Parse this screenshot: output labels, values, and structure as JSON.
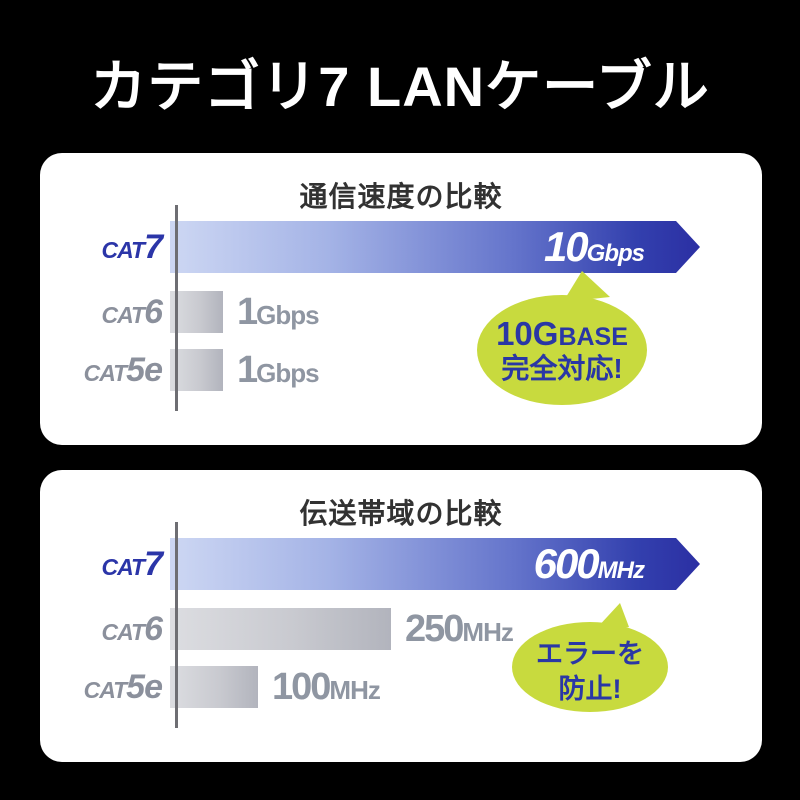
{
  "page": {
    "background_color": "#000000",
    "title": "カテゴリ7 LANケーブル"
  },
  "colors": {
    "card_background": "#ffffff",
    "arrow_blue_dark": "#2b2fa3",
    "arrow_blue_light": "#cdd7f3",
    "gray_bar_light": "#dcdde1",
    "gray_bar_dark": "#b2b4bd",
    "gray_text": "#8f96a2",
    "blue_label_text": "#2b35a8",
    "bubble_green": "#c8da3e",
    "bubble_text_blue": "#2a37a5",
    "chart_title_text": "#323232",
    "axis_gray": "#6e6e73"
  },
  "chart_data": [
    {
      "type": "bar",
      "orientation": "horizontal",
      "title": "通信速度の比較",
      "categories": [
        "CAT7",
        "CAT6",
        "CAT5e"
      ],
      "values": [
        10,
        1,
        1
      ],
      "unit": "Gbps",
      "xlim": [
        0,
        10
      ],
      "grid": false,
      "rows": [
        {
          "cat_prefix": "CAT",
          "cat_num": "7",
          "value_num": "10",
          "value_unit": "Gbps"
        },
        {
          "cat_prefix": "CAT",
          "cat_num": "6",
          "value_num": "1",
          "value_unit": "Gbps"
        },
        {
          "cat_prefix": "CAT",
          "cat_num": "5e",
          "value_num": "1",
          "value_unit": "Gbps"
        }
      ],
      "annotation": {
        "full_text": "10GBASE完全対応!",
        "line1_big": "10G",
        "line1_small": "BASE",
        "line2": "完全対応!"
      }
    },
    {
      "type": "bar",
      "orientation": "horizontal",
      "title": "伝送帯域の比較",
      "categories": [
        "CAT7",
        "CAT6",
        "CAT5e"
      ],
      "values": [
        600,
        250,
        100
      ],
      "unit": "MHz",
      "xlim": [
        0,
        600
      ],
      "grid": false,
      "rows": [
        {
          "cat_prefix": "CAT",
          "cat_num": "7",
          "value_num": "600",
          "value_unit": "MHz"
        },
        {
          "cat_prefix": "CAT",
          "cat_num": "6",
          "value_num": "250",
          "value_unit": "MHz"
        },
        {
          "cat_prefix": "CAT",
          "cat_num": "5e",
          "value_num": "100",
          "value_unit": "MHz"
        }
      ],
      "annotation": {
        "full_text": "エラーを防止!",
        "line1_big": "エラーを",
        "line1_small": "",
        "line2": "防止!"
      }
    }
  ]
}
